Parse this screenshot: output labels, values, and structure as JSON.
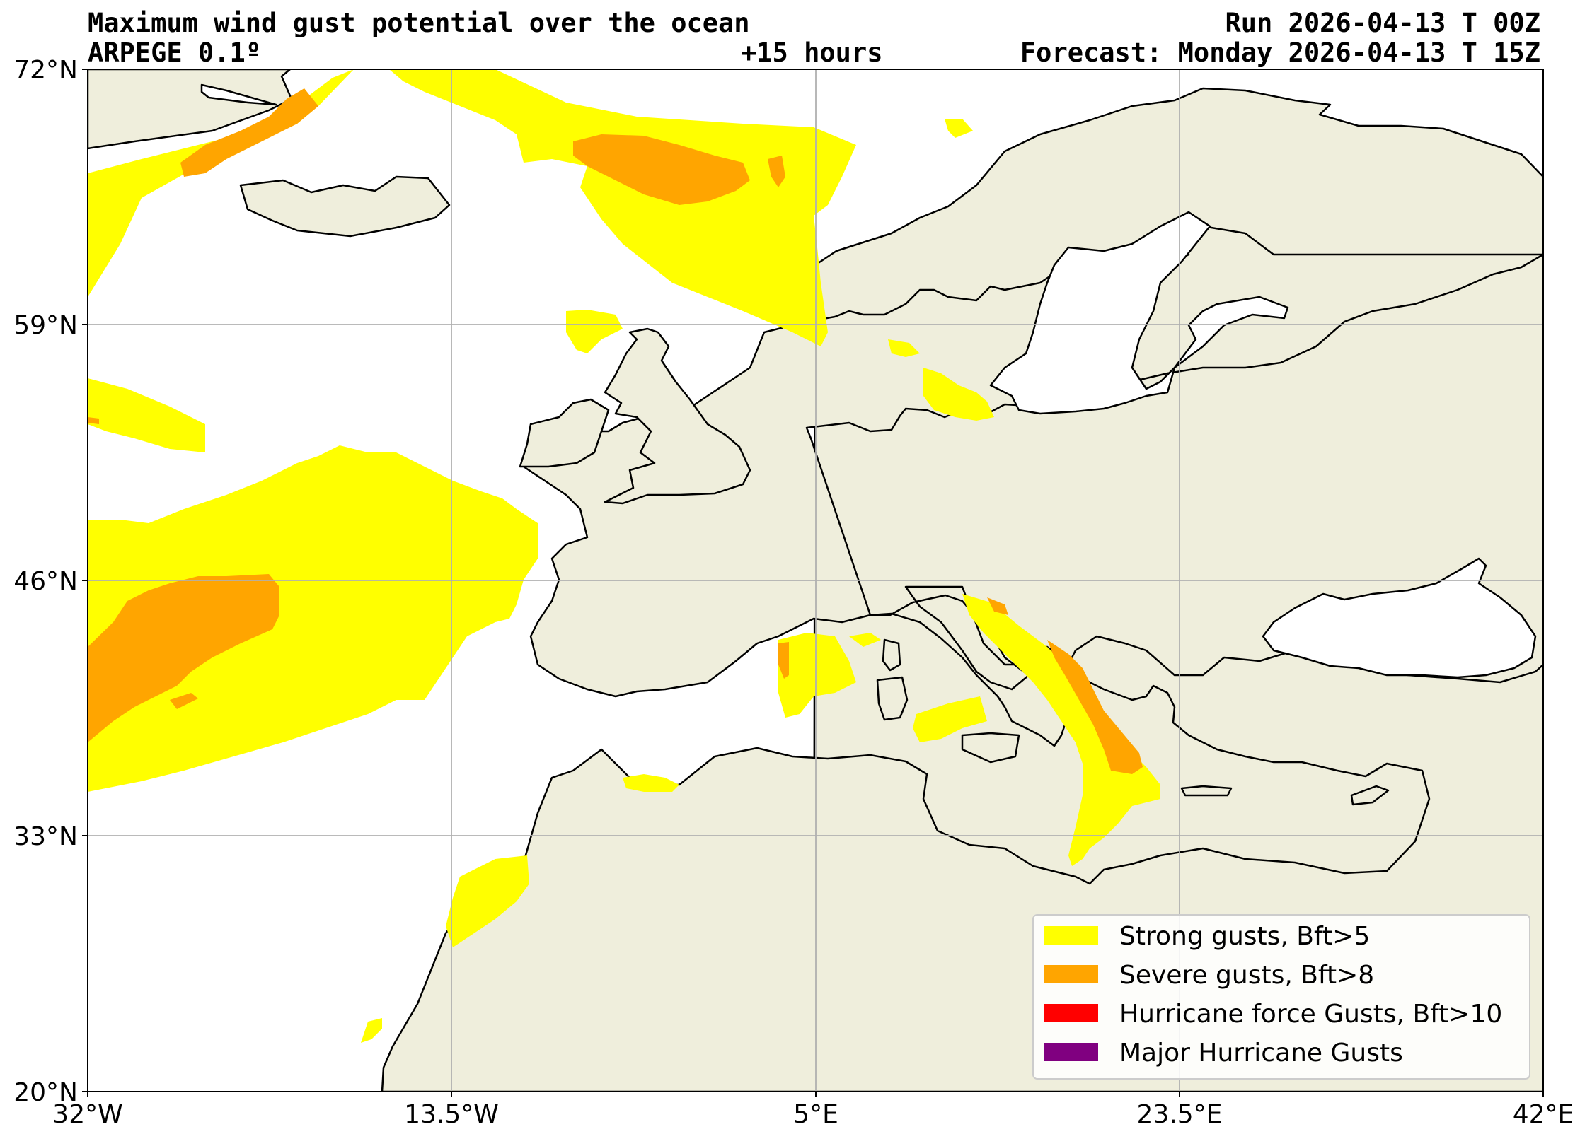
{
  "header": {
    "title": "Maximum wind gust potential over the ocean",
    "model": "ARPEGE 0.1º",
    "lead": "+15 hours",
    "run": "Run 2026-04-13 T 00Z",
    "forecast": "Forecast: Monday 2026-04-13 T 15Z"
  },
  "axes": {
    "lat_labels": [
      "72°N",
      "59°N",
      "46°N",
      "33°N",
      "20°N"
    ],
    "lon_labels": [
      "32°W",
      "13.5°W",
      "5°E",
      "23.5°E",
      "42°E"
    ],
    "lat_range": [
      20,
      72
    ],
    "lon_range": [
      -32,
      42
    ],
    "grid": true
  },
  "legend": {
    "items": [
      {
        "label": "Strong gusts, Bft>5",
        "color": "#ffff00"
      },
      {
        "label": "Severe gusts, Bft>8",
        "color": "#ffa500"
      },
      {
        "label": "Hurricane force Gusts, Bft>10",
        "color": "#ff0000"
      },
      {
        "label": "Major Hurricane Gusts",
        "color": "#800080"
      }
    ]
  },
  "colors": {
    "land": "#efeedc",
    "ocean": "#ffffff",
    "coast": "#000000",
    "grid": "#b0b0b0"
  }
}
